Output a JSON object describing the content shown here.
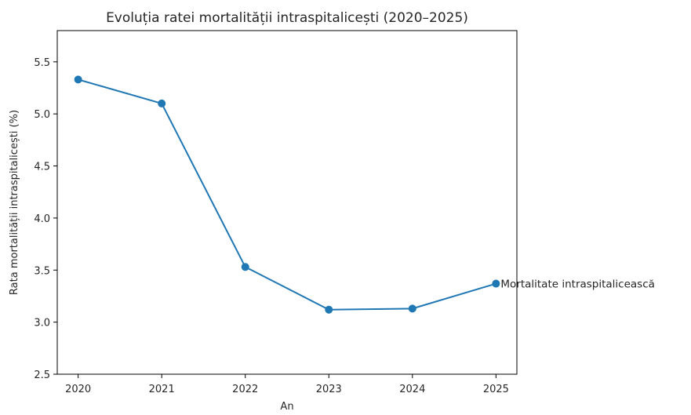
{
  "chart_data": {
    "type": "line",
    "title": "Evoluția ratei mortalității intraspitalicești (2020–2025)",
    "xlabel": "An",
    "ylabel": "Rata mortalității intraspitalicești (%)",
    "x": [
      2020,
      2021,
      2022,
      2023,
      2024,
      2025
    ],
    "x_tick_labels": [
      "2020",
      "2021",
      "2022",
      "2023",
      "2024",
      "2025"
    ],
    "y_ticks": [
      2.5,
      3.0,
      3.5,
      4.0,
      4.5,
      5.0,
      5.5
    ],
    "y_tick_labels": [
      "2.5",
      "3.0",
      "3.5",
      "4.0",
      "4.5",
      "5.0",
      "5.5"
    ],
    "ylim": [
      2.5,
      5.8
    ],
    "xlim": [
      2019.75,
      2025.25
    ],
    "grid": false,
    "series": [
      {
        "values": [
          5.33,
          5.1,
          3.53,
          3.12,
          3.13,
          3.37
        ],
        "color": "#1f77b4",
        "marker": "circle"
      }
    ],
    "annotations": [
      {
        "text": "Mortalitate intraspitalicească",
        "x": 2025,
        "y": 3.37
      }
    ]
  }
}
